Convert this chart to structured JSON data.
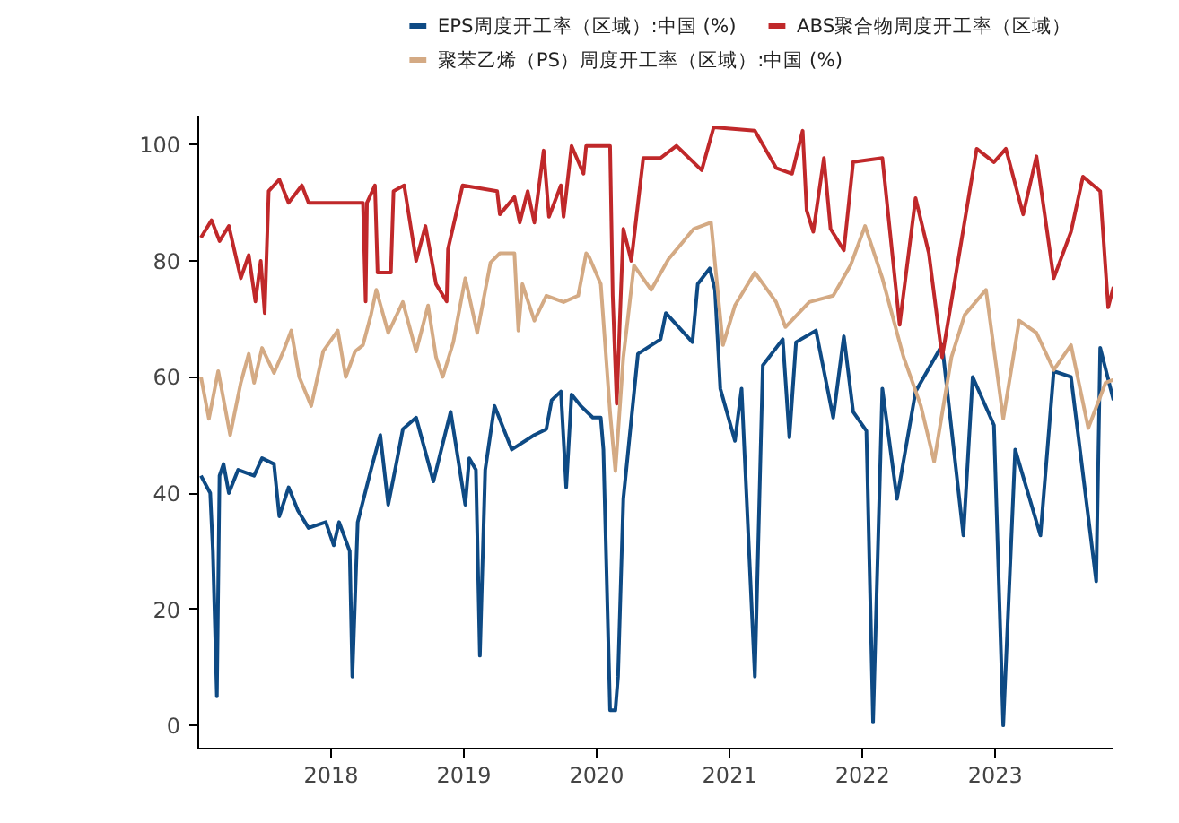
{
  "chart_data": {
    "type": "line",
    "xlim": [
      2017,
      2023.89
    ],
    "xticks": [
      2018,
      2019,
      2020,
      2021,
      2022,
      2023
    ],
    "ylim": [
      -4,
      105
    ],
    "yticks": [
      0,
      20,
      40,
      60,
      80,
      100
    ],
    "grid": false,
    "legend": "top",
    "line_style": "solid",
    "marker": "none",
    "series": [
      {
        "name": "EPS周度开工率（区域）:中国 (%)",
        "color": "#0e4a84",
        "x": [
          2017.02,
          2017.09,
          2017.11,
          2017.14,
          2017.16,
          2017.19,
          2017.23,
          2017.3,
          2017.42,
          2017.48,
          2017.57,
          2017.61,
          2017.68,
          2017.75,
          2017.83,
          2017.96,
          2018.02,
          2018.06,
          2018.14,
          2018.16,
          2018.2,
          2018.3,
          2018.37,
          2018.43,
          2018.49,
          2018.54,
          2018.64,
          2018.77,
          2018.9,
          2019.01,
          2019.04,
          2019.09,
          2019.12,
          2019.16,
          2019.23,
          2019.36,
          2019.53,
          2019.62,
          2019.66,
          2019.73,
          2019.77,
          2019.81,
          2019.88,
          2019.97,
          2020.03,
          2020.05,
          2020.1,
          2020.14,
          2020.16,
          2020.2,
          2020.31,
          2020.48,
          2020.52,
          2020.72,
          2020.76,
          2020.85,
          2020.89,
          2020.93,
          2021.04,
          2021.09,
          2021.19,
          2021.25,
          2021.4,
          2021.45,
          2021.5,
          2021.65,
          2021.78,
          2021.86,
          2021.93,
          2022.03,
          2022.08,
          2022.15,
          2022.26,
          2022.4,
          2022.6,
          2022.76,
          2022.83,
          2022.99,
          2023.06,
          2023.15,
          2023.34,
          2023.44,
          2023.57,
          2023.76,
          2023.79,
          2023.89
        ],
        "values": [
          43,
          40,
          30,
          5,
          43,
          45,
          40,
          44,
          43,
          46,
          45,
          36,
          41,
          37,
          34,
          35,
          31,
          35,
          30,
          8.4,
          35,
          44,
          50,
          38,
          45,
          51,
          53,
          42,
          54,
          38,
          46,
          44,
          12,
          44,
          55,
          47.5,
          50,
          51,
          56,
          57.5,
          41,
          57,
          55,
          53,
          53,
          47.5,
          2.6,
          2.6,
          8.4,
          39,
          64,
          66.5,
          71,
          66,
          76,
          78.7,
          75,
          58,
          49,
          58,
          8.4,
          62,
          66.5,
          49.6,
          66,
          68,
          53,
          67,
          54,
          50.7,
          0.5,
          58,
          39,
          57.5,
          65.5,
          32.7,
          60,
          51.7,
          0,
          47.5,
          32.7,
          61,
          60,
          24.8,
          65,
          56
        ]
      },
      {
        "name": "ABS聚合物周度开工率（区域）",
        "color": "#c0282a",
        "x": [
          2017.02,
          2017.1,
          2017.16,
          2017.23,
          2017.32,
          2017.38,
          2017.43,
          2017.47,
          2017.5,
          2017.53,
          2017.61,
          2017.68,
          2017.78,
          2017.83,
          2018.24,
          2018.26,
          2018.27,
          2018.33,
          2018.35,
          2018.45,
          2018.47,
          2018.55,
          2018.64,
          2018.71,
          2018.79,
          2018.87,
          2018.88,
          2018.99,
          2019.25,
          2019.27,
          2019.38,
          2019.42,
          2019.48,
          2019.53,
          2019.6,
          2019.64,
          2019.73,
          2019.75,
          2019.81,
          2019.9,
          2019.92,
          2019.94,
          2020.1,
          2020.12,
          2020.15,
          2020.2,
          2020.26,
          2020.35,
          2020.48,
          2020.6,
          2020.79,
          2020.88,
          2021.19,
          2021.35,
          2021.47,
          2021.55,
          2021.58,
          2021.63,
          2021.71,
          2021.76,
          2021.86,
          2021.93,
          2022.15,
          2022.28,
          2022.4,
          2022.5,
          2022.6,
          2022.76,
          2022.86,
          2022.99,
          2023.08,
          2023.21,
          2023.31,
          2023.44,
          2023.57,
          2023.66,
          2023.79,
          2023.85,
          2023.89
        ],
        "values": [
          84,
          87,
          83.4,
          86,
          77,
          81,
          73,
          80,
          71,
          92,
          94,
          90,
          93,
          90,
          90,
          73,
          90,
          93,
          78,
          78,
          92,
          93,
          80,
          86,
          76,
          73,
          82,
          93,
          92,
          88,
          91,
          86.6,
          92,
          86.6,
          99,
          87.6,
          93,
          87.6,
          99.8,
          95,
          99.8,
          99.8,
          99.8,
          74,
          55.4,
          85.5,
          80,
          97.7,
          97.7,
          99.8,
          95.6,
          103,
          102.4,
          96,
          95,
          102.4,
          88.7,
          85,
          97.7,
          85.5,
          81.8,
          97,
          97.7,
          69,
          90.8,
          81.3,
          63.4,
          85.5,
          99.3,
          97,
          99.3,
          88,
          98,
          77,
          85,
          94.5,
          92,
          72,
          75.5
        ]
      },
      {
        "name": "聚苯乙烯（PS）周度开工率（区域）:中国 (%)",
        "color": "#d4aa84",
        "x": [
          2017.02,
          2017.08,
          2017.15,
          2017.24,
          2017.32,
          2017.38,
          2017.42,
          2017.48,
          2017.57,
          2017.64,
          2017.7,
          2017.76,
          2017.85,
          2017.94,
          2018.05,
          2018.11,
          2018.18,
          2018.24,
          2018.3,
          2018.34,
          2018.43,
          2018.54,
          2018.64,
          2018.73,
          2018.79,
          2018.84,
          2018.92,
          2019.01,
          2019.1,
          2019.2,
          2019.27,
          2019.38,
          2019.41,
          2019.44,
          2019.53,
          2019.62,
          2019.75,
          2019.86,
          2019.92,
          2019.94,
          2020.03,
          2020.1,
          2020.14,
          2020.2,
          2020.28,
          2020.41,
          2020.54,
          2020.73,
          2020.86,
          2020.95,
          2021.04,
          2021.19,
          2021.35,
          2021.42,
          2021.6,
          2021.78,
          2021.91,
          2022.02,
          2022.15,
          2022.31,
          2022.44,
          2022.54,
          2022.67,
          2022.77,
          2022.93,
          2023.06,
          2023.18,
          2023.31,
          2023.44,
          2023.57,
          2023.7,
          2023.83,
          2023.89
        ],
        "values": [
          60,
          52.8,
          61,
          50,
          59,
          64,
          59,
          65,
          60.7,
          64.4,
          68,
          60,
          55,
          64.4,
          68,
          60,
          64.4,
          65.5,
          70.7,
          75,
          67.6,
          72.9,
          64.4,
          72.3,
          63.4,
          60,
          66,
          77,
          67.6,
          79.7,
          81.3,
          81.3,
          68,
          76,
          69.7,
          74,
          72.9,
          74,
          81.3,
          80.8,
          76,
          53.9,
          43.8,
          63.4,
          79.2,
          75,
          80.3,
          85.5,
          86.6,
          65.5,
          72.3,
          78,
          72.9,
          68.6,
          72.9,
          74,
          79.2,
          86,
          77,
          63.4,
          55,
          45.4,
          63.4,
          70.7,
          75,
          52.8,
          69.7,
          67.6,
          61.2,
          65.5,
          51.2,
          59,
          59.5
        ]
      }
    ]
  }
}
